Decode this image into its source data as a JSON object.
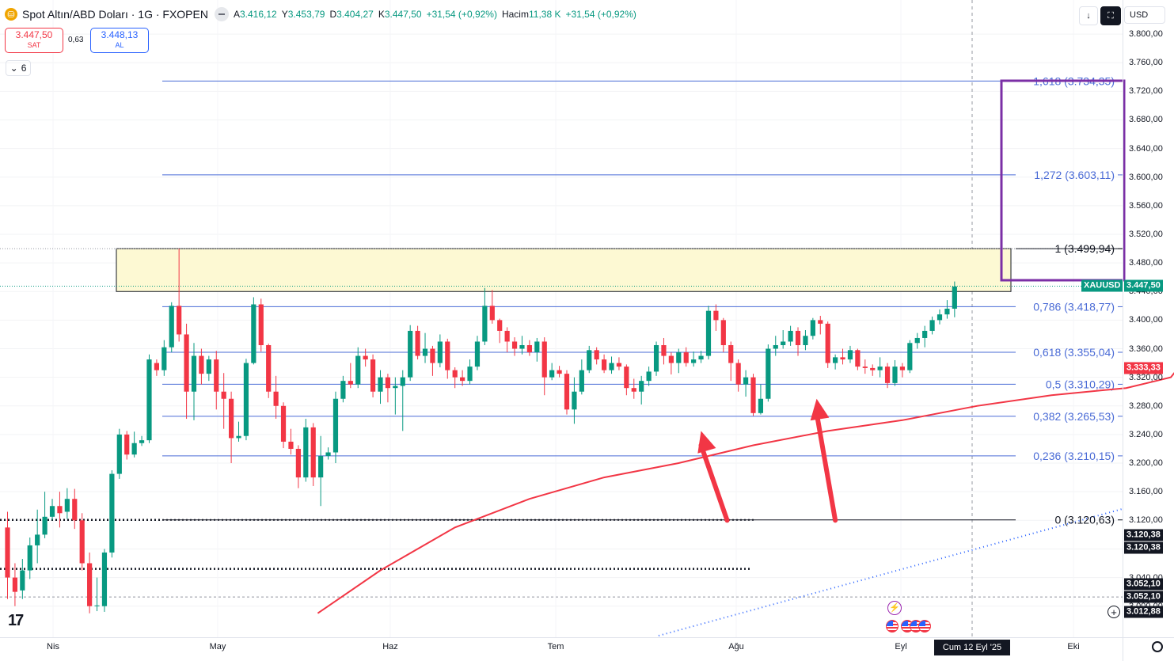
{
  "header": {
    "title": "Spot Altın/ABD Doları · 1G · FXOPEN",
    "ohlc": [
      {
        "label": "A",
        "value": "3.416,12"
      },
      {
        "label": "Y",
        "value": "3.453,79"
      },
      {
        "label": "D",
        "value": "3.404,27"
      },
      {
        "label": "K",
        "value": "3.447,50"
      },
      {
        "label": "",
        "value": "+31,54 (+0,92%)"
      },
      {
        "label": "Hacim",
        "value": "11,38 K"
      },
      {
        "label": "",
        "value": "+31,54 (+0,92%)"
      }
    ]
  },
  "trade": {
    "sell_price": "3.447,50",
    "sell_label": "SAT",
    "spread": "0,63",
    "buy_price": "3.448,13",
    "buy_label": "AL"
  },
  "indicators_collapsed_count": "6",
  "toolbar": {
    "download_icon": "download-icon",
    "fullscreen_icon": "fullscreen-icon",
    "currency": "USD"
  },
  "colors": {
    "up": "#089981",
    "down": "#f23645",
    "fib": "#4a6bd6",
    "ma": "#f23645",
    "box": "#7b2fa6",
    "zone": "#fdf9d3"
  },
  "chart_data": {
    "type": "candlestick",
    "symbol": "XAUUSD",
    "last_price": "3.447,50",
    "ma_value": "3.333,33",
    "ylim": [
      2980,
      3830
    ],
    "y_ticks": [
      "3.800,00",
      "3.760,00",
      "3.720,00",
      "3.680,00",
      "3.640,00",
      "3.600,00",
      "3.560,00",
      "3.520,00",
      "3.480,00",
      "3.440,00",
      "3.400,00",
      "3.360,00",
      "3.320,00",
      "3.280,00",
      "3.240,00",
      "3.200,00",
      "3.160,00",
      "3.120,00",
      "3.080,00",
      "3.040,00",
      "3.000,00"
    ],
    "x_labels": [
      "Nis",
      "May",
      "Haz",
      "Tem",
      "Ağu",
      "Eyl",
      "Eki"
    ],
    "crosshair_date": "Cum 12 Eyl '25",
    "level_tags": [
      "3.120,38",
      "3.120,38",
      "3.052,10",
      "3.052,10",
      "3.012,88"
    ],
    "fibonacci": [
      {
        "ratio": "1,618",
        "price": 3734.35,
        "label": "1,618 (3.734,35)"
      },
      {
        "ratio": "1,272",
        "price": 3603.11,
        "label": "1,272 (3.603,11)"
      },
      {
        "ratio": "1",
        "price": 3499.94,
        "label": "1 (3.499,94)"
      },
      {
        "ratio": "0,786",
        "price": 3418.77,
        "label": "0,786 (3.418,77)"
      },
      {
        "ratio": "0,618",
        "price": 3355.04,
        "label": "0,618 (3.355,04)"
      },
      {
        "ratio": "0,5",
        "price": 3310.29,
        "label": "0,5 (3.310,29)"
      },
      {
        "ratio": "0,382",
        "price": 3265.53,
        "label": "0,382 (3.265,53)"
      },
      {
        "ratio": "0,236",
        "price": 3210.15,
        "label": "0,236 (3.210,15)"
      },
      {
        "ratio": "0",
        "price": 3120.63,
        "label": "0 (3.120,63)"
      }
    ],
    "resistance_zone": [
      3440,
      3500
    ],
    "candles": [
      [
        3110,
        3040,
        3132,
        3010
      ],
      [
        3040,
        3020,
        3060,
        3000
      ],
      [
        3022,
        3050,
        3066,
        3010
      ],
      [
        3050,
        3085,
        3096,
        3038
      ],
      [
        3085,
        3100,
        3135,
        3060
      ],
      [
        3100,
        3125,
        3160,
        3095
      ],
      [
        3125,
        3140,
        3150,
        3120
      ],
      [
        3140,
        3130,
        3160,
        3110
      ],
      [
        3132,
        3150,
        3165,
        3122
      ],
      [
        3150,
        3120,
        3164,
        3108
      ],
      [
        3120,
        3060,
        3130,
        3050
      ],
      [
        3060,
        3000,
        3075,
        2990
      ],
      [
        3000,
        3001,
        3040,
        2993
      ],
      [
        3000,
        3075,
        3080,
        2992
      ],
      [
        3075,
        3185,
        3190,
        3068
      ],
      [
        3185,
        3240,
        3248,
        3178
      ],
      [
        3240,
        3212,
        3245,
        3205
      ],
      [
        3212,
        3228,
        3244,
        3208
      ],
      [
        3228,
        3232,
        3238,
        3224
      ],
      [
        3232,
        3345,
        3352,
        3228
      ],
      [
        3340,
        3330,
        3345,
        3322
      ],
      [
        3330,
        3362,
        3372,
        3322
      ],
      [
        3362,
        3420,
        3425,
        3355
      ],
      [
        3420,
        3380,
        3500,
        3370
      ],
      [
        3380,
        3300,
        3395,
        3262
      ],
      [
        3300,
        3350,
        3368,
        3260
      ],
      [
        3350,
        3325,
        3360,
        3310
      ],
      [
        3325,
        3345,
        3350,
        3315
      ],
      [
        3345,
        3300,
        3357,
        3275
      ],
      [
        3300,
        3290,
        3326,
        3248
      ],
      [
        3290,
        3235,
        3300,
        3200
      ],
      [
        3235,
        3238,
        3258,
        3230
      ],
      [
        3238,
        3340,
        3346,
        3232
      ],
      [
        3340,
        3422,
        3432,
        3338
      ],
      [
        3422,
        3365,
        3430,
        3356
      ],
      [
        3365,
        3300,
        3367,
        3291
      ],
      [
        3300,
        3280,
        3322,
        3262
      ],
      [
        3280,
        3230,
        3285,
        3221
      ],
      [
        3230,
        3220,
        3248,
        3212
      ],
      [
        3220,
        3180,
        3225,
        3165
      ],
      [
        3180,
        3250,
        3262,
        3174
      ],
      [
        3250,
        3180,
        3256,
        3168
      ],
      [
        3180,
        3210,
        3238,
        3140
      ],
      [
        3210,
        3215,
        3222,
        3205
      ],
      [
        3215,
        3290,
        3300,
        3200
      ],
      [
        3290,
        3315,
        3322,
        3285
      ],
      [
        3315,
        3310,
        3340,
        3305
      ],
      [
        3310,
        3350,
        3362,
        3305
      ],
      [
        3350,
        3345,
        3360,
        3335
      ],
      [
        3345,
        3300,
        3352,
        3292
      ],
      [
        3300,
        3320,
        3330,
        3283
      ],
      [
        3320,
        3305,
        3325,
        3285
      ],
      [
        3305,
        3308,
        3320,
        3268
      ],
      [
        3308,
        3320,
        3330,
        3245
      ],
      [
        3320,
        3385,
        3393,
        3315
      ],
      [
        3385,
        3350,
        3392,
        3345
      ],
      [
        3350,
        3360,
        3382,
        3340
      ],
      [
        3360,
        3340,
        3364,
        3322
      ],
      [
        3340,
        3370,
        3380,
        3334
      ],
      [
        3370,
        3330,
        3374,
        3318
      ],
      [
        3330,
        3320,
        3334,
        3305
      ],
      [
        3320,
        3315,
        3330,
        3308
      ],
      [
        3315,
        3335,
        3345,
        3310
      ],
      [
        3335,
        3370,
        3378,
        3330
      ],
      [
        3370,
        3420,
        3445,
        3365
      ],
      [
        3420,
        3400,
        3442,
        3395
      ],
      [
        3400,
        3385,
        3402,
        3368
      ],
      [
        3385,
        3370,
        3390,
        3355
      ],
      [
        3370,
        3360,
        3376,
        3350
      ],
      [
        3360,
        3365,
        3378,
        3352
      ],
      [
        3365,
        3355,
        3372,
        3350
      ],
      [
        3355,
        3370,
        3375,
        3342
      ],
      [
        3370,
        3320,
        3376,
        3295
      ],
      [
        3320,
        3330,
        3340,
        3316
      ],
      [
        3330,
        3325,
        3336,
        3320
      ],
      [
        3325,
        3275,
        3330,
        3268
      ],
      [
        3275,
        3300,
        3320,
        3255
      ],
      [
        3300,
        3330,
        3345,
        3296
      ],
      [
        3330,
        3358,
        3364,
        3326
      ],
      [
        3358,
        3345,
        3362,
        3338
      ],
      [
        3345,
        3330,
        3352,
        3326
      ],
      [
        3330,
        3340,
        3349,
        3325
      ],
      [
        3340,
        3335,
        3348,
        3330
      ],
      [
        3335,
        3305,
        3338,
        3295
      ],
      [
        3305,
        3300,
        3318,
        3290
      ],
      [
        3300,
        3315,
        3322,
        3282
      ],
      [
        3315,
        3328,
        3335,
        3308
      ],
      [
        3328,
        3365,
        3370,
        3322
      ],
      [
        3365,
        3350,
        3375,
        3338
      ],
      [
        3350,
        3340,
        3355,
        3324
      ],
      [
        3340,
        3355,
        3360,
        3326
      ],
      [
        3355,
        3340,
        3362,
        3335
      ],
      [
        3340,
        3345,
        3356,
        3335
      ],
      [
        3345,
        3350,
        3357,
        3340
      ],
      [
        3350,
        3413,
        3420,
        3345
      ],
      [
        3413,
        3400,
        3422,
        3385
      ],
      [
        3400,
        3365,
        3403,
        3355
      ],
      [
        3365,
        3340,
        3370,
        3315
      ],
      [
        3340,
        3310,
        3345,
        3300
      ],
      [
        3310,
        3320,
        3330,
        3293
      ],
      [
        3320,
        3270,
        3325,
        3266
      ],
      [
        3270,
        3290,
        3310,
        3268
      ],
      [
        3290,
        3360,
        3366,
        3286
      ],
      [
        3360,
        3365,
        3378,
        3350
      ],
      [
        3365,
        3370,
        3386,
        3360
      ],
      [
        3370,
        3385,
        3392,
        3364
      ],
      [
        3385,
        3365,
        3390,
        3350
      ],
      [
        3365,
        3378,
        3386,
        3358
      ],
      [
        3378,
        3400,
        3403,
        3373
      ],
      [
        3400,
        3395,
        3406,
        3380
      ],
      [
        3395,
        3340,
        3398,
        3333
      ],
      [
        3340,
        3348,
        3352,
        3331
      ],
      [
        3348,
        3345,
        3360,
        3338
      ],
      [
        3345,
        3358,
        3364,
        3340
      ],
      [
        3358,
        3335,
        3360,
        3330
      ],
      [
        3335,
        3333,
        3345,
        3325
      ],
      [
        3333,
        3330,
        3338,
        3322
      ],
      [
        3330,
        3335,
        3348,
        3320
      ],
      [
        3335,
        3312,
        3340,
        3305
      ],
      [
        3312,
        3335,
        3344,
        3308
      ],
      [
        3335,
        3330,
        3340,
        3320
      ],
      [
        3330,
        3368,
        3372,
        3326
      ],
      [
        3368,
        3375,
        3382,
        3360
      ],
      [
        3375,
        3385,
        3392,
        3362
      ],
      [
        3385,
        3400,
        3405,
        3380
      ],
      [
        3400,
        3408,
        3415,
        3394
      ],
      [
        3408,
        3416,
        3428,
        3402
      ],
      [
        3416,
        3447,
        3454,
        3404
      ]
    ],
    "moving_average": [
      [
        1.6,
        2990
      ],
      [
        10,
        3050
      ],
      [
        20,
        3110
      ],
      [
        30,
        3150
      ],
      [
        40,
        3180
      ],
      [
        50,
        3200
      ],
      [
        60,
        3225
      ],
      [
        70,
        3245
      ],
      [
        80,
        3260
      ],
      [
        90,
        3280
      ],
      [
        100,
        3295
      ],
      [
        110,
        3305
      ],
      [
        114,
        3315
      ],
      [
        116,
        3320
      ],
      [
        117,
        3333
      ]
    ],
    "arrows": [
      {
        "from_date": 96.5,
        "from_price": 3120,
        "to_date": 93.0,
        "to_price": 3245
      },
      {
        "from_date": 111.0,
        "from_price": 3120,
        "to_date": 108.5,
        "to_price": 3290
      }
    ]
  }
}
